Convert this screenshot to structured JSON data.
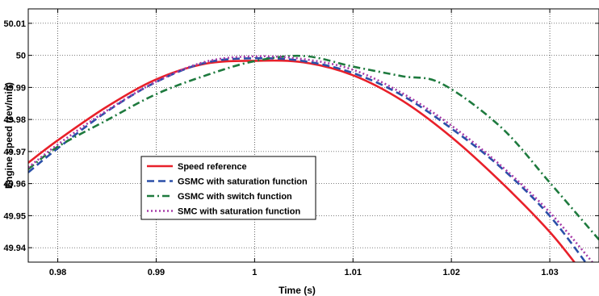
{
  "chart_data": {
    "type": "line",
    "title": "",
    "xlabel": "Time (s)",
    "ylabel": "Engine speed (rev/min)",
    "xlim": [
      0.977,
      1.035
    ],
    "ylim": [
      49.9355,
      50.0145
    ],
    "xticks": [
      0.98,
      0.99,
      1,
      1.01,
      1.02,
      1.03
    ],
    "xtick_labels": [
      "0.98",
      "0.99",
      "1",
      "1.01",
      "1.02",
      "1.03"
    ],
    "yticks": [
      49.94,
      49.95,
      49.96,
      49.97,
      49.98,
      49.99,
      50,
      50.01
    ],
    "ytick_labels": [
      "49.94",
      "49.95",
      "49.96",
      "49.97",
      "49.98",
      "49.99",
      "50",
      "50.01"
    ],
    "grid": true,
    "legend_position": "center-left",
    "series": [
      {
        "name": "Speed reference",
        "color": "#e8202a",
        "style": "solid",
        "points": [
          [
            0.977,
            49.9665
          ],
          [
            0.98,
            49.9735
          ],
          [
            0.985,
            49.984
          ],
          [
            0.99,
            49.9925
          ],
          [
            0.995,
            49.9974
          ],
          [
            1.0,
            49.9983
          ],
          [
            1.005,
            49.9978
          ],
          [
            1.01,
            49.9938
          ],
          [
            1.015,
            49.9859
          ],
          [
            1.02,
            49.9745
          ],
          [
            1.025,
            49.9606
          ],
          [
            1.03,
            49.9449
          ],
          [
            1.0335,
            49.9315
          ]
        ]
      },
      {
        "name": "GSMC with saturation function",
        "color": "#2a4fa8",
        "style": "dashed",
        "points": [
          [
            0.977,
            49.9635
          ],
          [
            0.98,
            49.971
          ],
          [
            0.985,
            49.9825
          ],
          [
            0.99,
            49.9917
          ],
          [
            0.995,
            49.9977
          ],
          [
            1.0,
            49.9991
          ],
          [
            1.005,
            49.9982
          ],
          [
            1.01,
            49.9945
          ],
          [
            1.015,
            49.9875
          ],
          [
            1.02,
            49.9772
          ],
          [
            1.025,
            49.9651
          ],
          [
            1.03,
            49.9499
          ],
          [
            1.0345,
            49.9318
          ]
        ]
      },
      {
        "name": "GSMC with switch function",
        "color": "#1e7a3e",
        "style": "dashdot",
        "points": [
          [
            0.977,
            49.9645
          ],
          [
            0.98,
            49.9715
          ],
          [
            0.985,
            49.9798
          ],
          [
            0.99,
            49.9879
          ],
          [
            0.995,
            49.9937
          ],
          [
            1.0,
            49.9982
          ],
          [
            1.005,
            49.9998
          ],
          [
            1.01,
            49.9965
          ],
          [
            1.015,
            49.9935
          ],
          [
            1.019,
            49.9912
          ],
          [
            1.025,
            49.9777
          ],
          [
            1.03,
            49.9603
          ],
          [
            1.035,
            49.9425
          ]
        ]
      },
      {
        "name": "SMC with saturation function",
        "color": "#a63aa8",
        "style": "dotted",
        "points": [
          [
            0.977,
            49.965
          ],
          [
            0.98,
            49.9722
          ],
          [
            0.985,
            49.9828
          ],
          [
            0.99,
            49.9918
          ],
          [
            0.995,
            49.998
          ],
          [
            1.0,
            49.9997
          ],
          [
            1.005,
            49.9988
          ],
          [
            1.01,
            49.9955
          ],
          [
            1.015,
            49.9882
          ],
          [
            1.02,
            49.9781
          ],
          [
            1.025,
            49.9657
          ],
          [
            1.03,
            49.951
          ],
          [
            1.035,
            49.933
          ]
        ]
      }
    ]
  }
}
